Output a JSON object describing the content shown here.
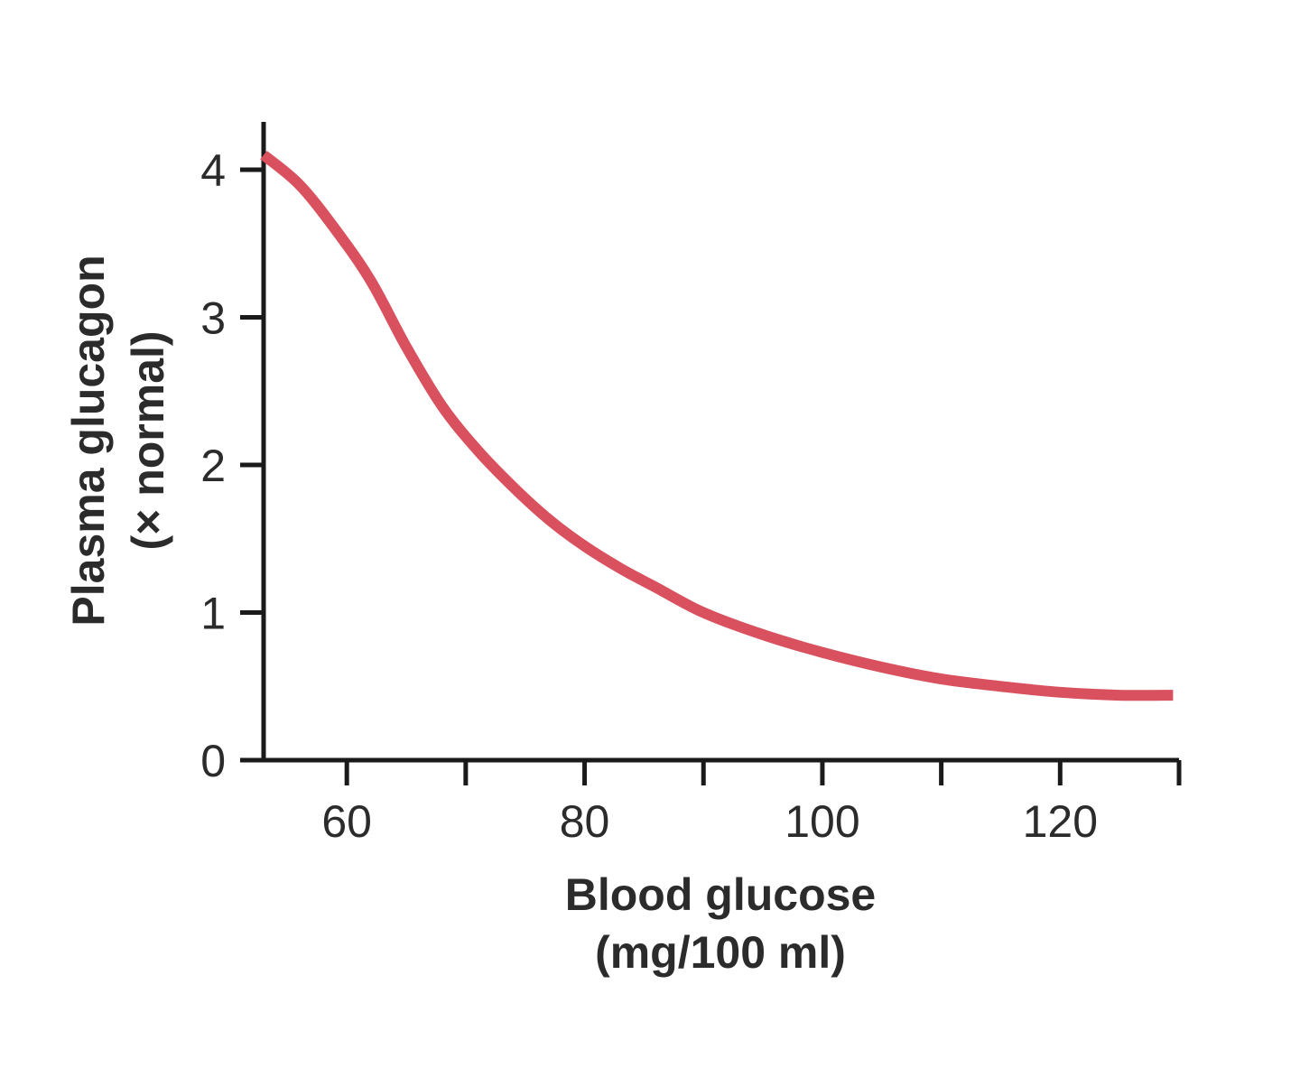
{
  "chart_data": {
    "type": "line",
    "title": "",
    "xlabel": [
      "Blood glucose",
      "(mg/100 ml)"
    ],
    "ylabel": [
      "Plasma glucagon",
      "(× normal)"
    ],
    "xlim": [
      53,
      130
    ],
    "ylim": [
      0,
      4.3
    ],
    "x_ticks": [
      60,
      70,
      80,
      90,
      100,
      110,
      120,
      130
    ],
    "x_tick_labels": [
      "60",
      "",
      "80",
      "",
      "100",
      "",
      "120",
      ""
    ],
    "y_ticks": [
      0,
      1,
      2,
      3,
      4
    ],
    "y_tick_labels": [
      "0",
      "1",
      "2",
      "3",
      "4"
    ],
    "grid": false,
    "color": "#d9515f",
    "series": [
      {
        "x": [
          53,
          56,
          59,
          62,
          65,
          68,
          71,
          74,
          77,
          80,
          83,
          86,
          90,
          95,
          100,
          105,
          110,
          115,
          120,
          125,
          129.5
        ],
        "y": [
          4.1,
          3.9,
          3.6,
          3.25,
          2.8,
          2.4,
          2.1,
          1.85,
          1.63,
          1.45,
          1.3,
          1.17,
          1.0,
          0.85,
          0.73,
          0.63,
          0.55,
          0.5,
          0.46,
          0.44,
          0.44
        ]
      }
    ]
  }
}
